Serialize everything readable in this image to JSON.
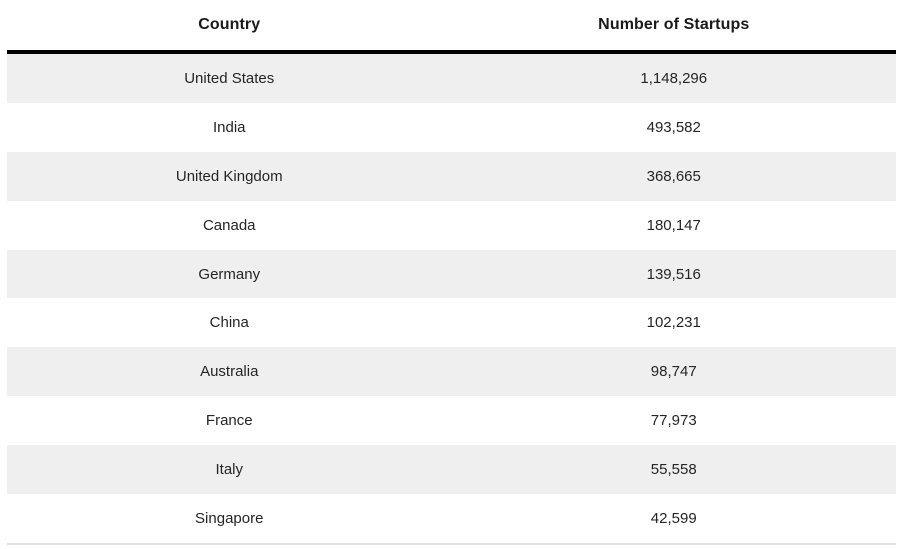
{
  "table": {
    "columns": [
      {
        "label": "Country"
      },
      {
        "label": "Number of Startups"
      }
    ],
    "rows": [
      {
        "country": "United States",
        "value": "1,148,296"
      },
      {
        "country": "India",
        "value": "493,582"
      },
      {
        "country": "United Kingdom",
        "value": "368,665"
      },
      {
        "country": "Canada",
        "value": "180,147"
      },
      {
        "country": "Germany",
        "value": "139,516"
      },
      {
        "country": "China",
        "value": "102,231"
      },
      {
        "country": "Australia",
        "value": "98,747"
      },
      {
        "country": "France",
        "value": "77,973"
      },
      {
        "country": "Italy",
        "value": "55,558"
      },
      {
        "country": "Singapore",
        "value": "42,599"
      }
    ],
    "colors": {
      "alt_row_bg": "#efefef",
      "row_bg": "#ffffff",
      "header_rule": "#000000",
      "bottom_rule": "#e3e3e3",
      "header_text": "#1a1a1a",
      "body_text": "#252525"
    }
  },
  "chart_data": {
    "type": "table",
    "title": "",
    "columns": [
      "Country",
      "Number of Startups"
    ],
    "rows": [
      [
        "United States",
        1148296
      ],
      [
        "India",
        493582
      ],
      [
        "United Kingdom",
        368665
      ],
      [
        "Canada",
        180147
      ],
      [
        "Germany",
        139516
      ],
      [
        "China",
        102231
      ],
      [
        "Australia",
        98747
      ],
      [
        "France",
        77973
      ],
      [
        "Italy",
        55558
      ],
      [
        "Singapore",
        42599
      ]
    ]
  }
}
